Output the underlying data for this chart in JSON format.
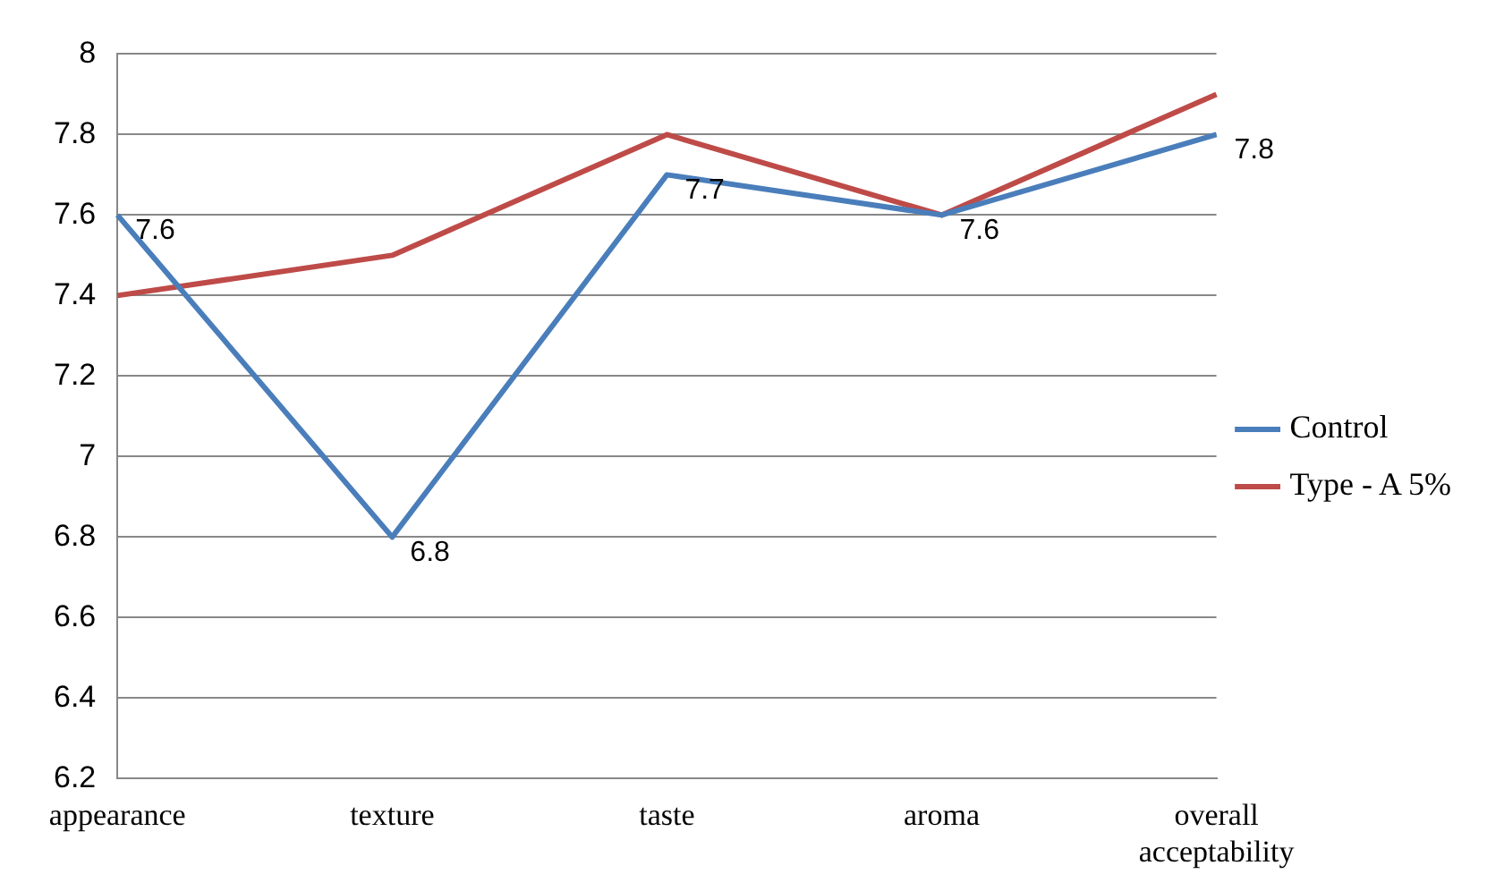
{
  "chart_data": {
    "type": "line",
    "categories": [
      "appearance",
      "texture",
      "taste",
      "aroma",
      "overall acceptability"
    ],
    "series": [
      {
        "name": "Control",
        "color": "#4a7ebb",
        "values": [
          7.6,
          6.8,
          7.7,
          7.6,
          7.8
        ],
        "value_labels": [
          "7.6",
          "6.8",
          "7.7",
          "7.6",
          "7.8"
        ]
      },
      {
        "name": "Type - A 5%",
        "color": "#be4b48",
        "values": [
          7.4,
          7.5,
          7.8,
          7.6,
          7.9
        ]
      }
    ],
    "ylim": [
      6.2,
      8
    ],
    "yticks": [
      6.2,
      6.4,
      6.6,
      6.8,
      7,
      7.2,
      7.4,
      7.6,
      7.8,
      8
    ],
    "grid": "y",
    "legend": "right",
    "marker": "none",
    "line_style": "solid"
  }
}
